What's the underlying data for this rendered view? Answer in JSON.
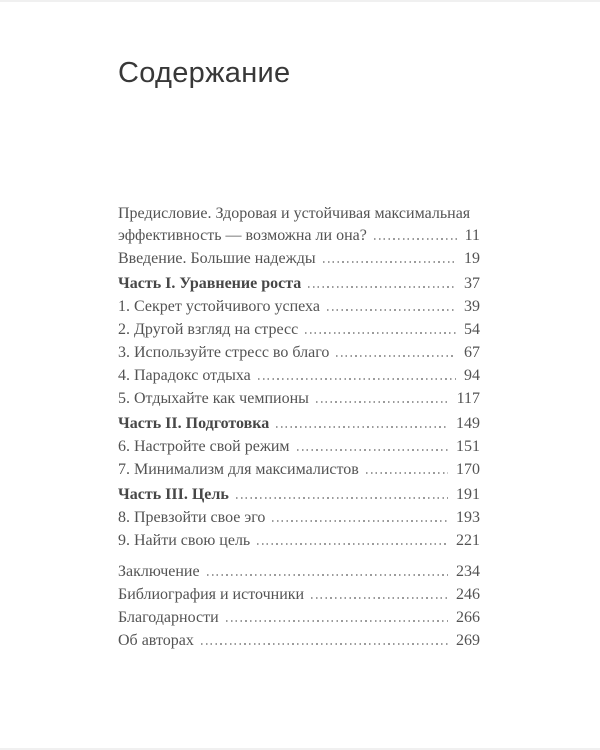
{
  "page": {
    "title": "Содержание"
  },
  "toc": {
    "sections": [
      {
        "rows": [
          {
            "lines": [
              "Предисловие. Здоровая и устойчивая максимальная",
              "эффективность — возможна ли она?"
            ],
            "page": "11",
            "bold": false
          },
          {
            "lines": [
              "Введение. Большие надежды"
            ],
            "page": "19",
            "bold": false
          }
        ]
      },
      {
        "rows": [
          {
            "lines": [
              "Часть I. Уравнение роста"
            ],
            "page": "37",
            "bold": true
          },
          {
            "lines": [
              "1. Секрет устойчивого успеха"
            ],
            "page": "39",
            "bold": false
          },
          {
            "lines": [
              "2. Другой взгляд на стресс"
            ],
            "page": "54",
            "bold": false
          },
          {
            "lines": [
              "3. Используйте стресс во благо"
            ],
            "page": "67",
            "bold": false
          },
          {
            "lines": [
              "4. Парадокс отдыха"
            ],
            "page": "94",
            "bold": false
          },
          {
            "lines": [
              "5. Отдыхайте как чемпионы"
            ],
            "page": "117",
            "bold": false
          }
        ]
      },
      {
        "rows": [
          {
            "lines": [
              "Часть II. Подготовка"
            ],
            "page": "149",
            "bold": true
          },
          {
            "lines": [
              "6. Настройте свой режим"
            ],
            "page": "151",
            "bold": false
          },
          {
            "lines": [
              "7. Минимализм для максималистов"
            ],
            "page": "170",
            "bold": false
          }
        ]
      },
      {
        "rows": [
          {
            "lines": [
              "Часть III. Цель"
            ],
            "page": "191",
            "bold": true
          },
          {
            "lines": [
              "8. Превзойти свое эго"
            ],
            "page": "193",
            "bold": false
          },
          {
            "lines": [
              "9. Найти свою цель"
            ],
            "page": "221",
            "bold": false
          }
        ]
      },
      {
        "rows": [
          {
            "lines": [
              "Заключение"
            ],
            "page": "234",
            "bold": false
          },
          {
            "lines": [
              "Библиография и источники"
            ],
            "page": "246",
            "bold": false
          },
          {
            "lines": [
              "Благодарности"
            ],
            "page": "266",
            "bold": false
          },
          {
            "lines": [
              "Об авторах"
            ],
            "page": "269",
            "bold": false
          }
        ]
      }
    ]
  },
  "colors": {
    "title": "#383838",
    "body": "#535353",
    "bold": "#474747",
    "leader": "#9b9b9b",
    "background": "#ffffff"
  }
}
